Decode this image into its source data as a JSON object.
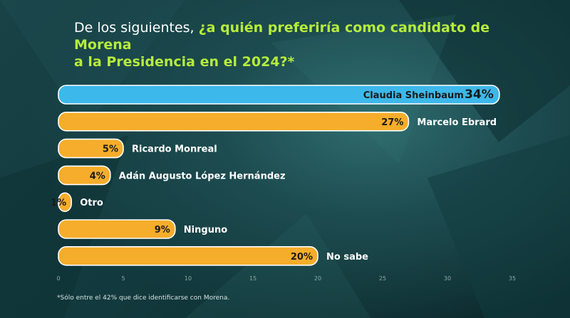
{
  "title": {
    "lead": "De los siguientes, ",
    "highlight_line1": "¿a quién preferiría como candidato de Morena",
    "highlight_line2": "a la Presidencia en el 2024?*"
  },
  "colors": {
    "highlight_text": "#b6ec3c",
    "leader_bar": "#3db8ea",
    "bar": "#f6ad2b",
    "bar_outline": "#ffffff",
    "label_text": "#ffffff",
    "value_text_on_bar": "#1a1a1a"
  },
  "chart_data": {
    "type": "bar",
    "orientation": "horizontal",
    "categories": [
      "Claudia Sheinbaum",
      "Marcelo Ebrard",
      "Ricardo Monreal",
      "Adán Augusto López Hernández",
      "Otro",
      "Ninguno",
      "No sabe"
    ],
    "values": [
      34,
      27,
      5,
      4,
      1,
      9,
      20
    ],
    "value_labels": [
      "34%",
      "27%",
      "5%",
      "4%",
      "1%",
      "9%",
      "20%"
    ],
    "highlighted_category": "Claudia Sheinbaum",
    "xlim": [
      0,
      35
    ],
    "xticks": [
      0,
      5,
      10,
      15,
      20,
      25,
      30,
      35
    ],
    "grid": false
  },
  "footnote": "*Sólo entre el 42% que dice identificarse con Morena."
}
